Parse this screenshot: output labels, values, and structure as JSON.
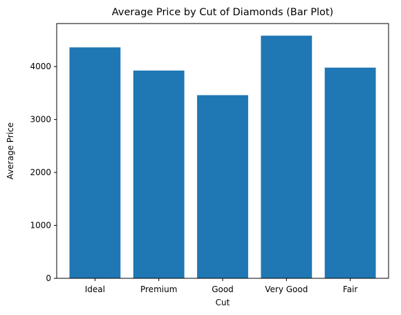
{
  "chart_data": {
    "type": "bar",
    "title": "Average Price by Cut of Diamonds (Bar Plot)",
    "xlabel": "Cut",
    "ylabel": "Average Price",
    "categories": [
      "Ideal",
      "Premium",
      "Good",
      "Very Good",
      "Fair"
    ],
    "values": [
      4363,
      3925,
      3460,
      4584,
      3980
    ],
    "yticks": [
      0,
      1000,
      2000,
      3000,
      4000
    ],
    "ylim": [
      0,
      4813
    ],
    "grid": false,
    "bar_color": "#1f77b4"
  }
}
